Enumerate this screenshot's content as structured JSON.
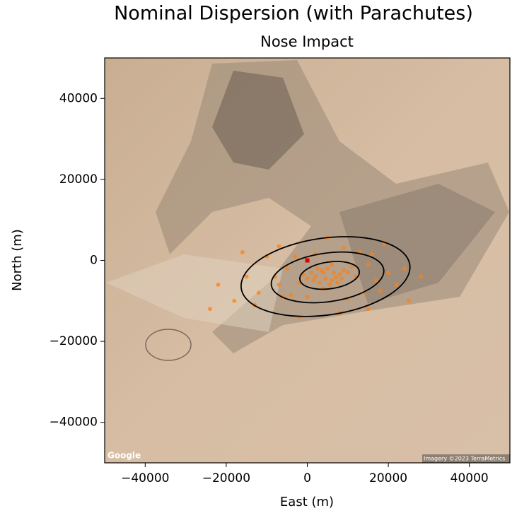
{
  "chart_data": {
    "type": "scatter",
    "title": "Nominal Dispersion (with Parachutes)",
    "subtitle": "Nose Impact",
    "x_label": "East (m)",
    "y_label": "North (m)",
    "xlim": [
      -50000,
      50000
    ],
    "ylim": [
      -50000,
      50000
    ],
    "xticks": [
      {
        "value": -40000,
        "label": "−40000"
      },
      {
        "value": -20000,
        "label": "−20000"
      },
      0,
      20000,
      40000
    ],
    "yticks": [
      {
        "value": -40000,
        "label": "−40000"
      },
      {
        "value": -20000,
        "label": "−20000"
      },
      0,
      20000,
      40000
    ],
    "color": "#ff7f0e",
    "x": [
      2000,
      4000,
      6000,
      8000,
      3000,
      5000,
      7000,
      1000,
      9000,
      4500,
      6500,
      3500,
      5500,
      7500,
      2500,
      8500,
      1500,
      10000,
      0,
      11000,
      -1000,
      12000,
      -2000,
      6000,
      4000,
      -5000,
      -7000,
      15000,
      17000,
      14000,
      -4000,
      13000,
      2000,
      9000,
      -3000,
      18000,
      -8000,
      20000,
      16000,
      -6000,
      10000,
      0,
      -12000,
      -15000,
      22000,
      24000,
      -10000,
      -13000,
      -18000,
      -22000,
      -24000,
      25000,
      19000,
      5000,
      -7000,
      8000,
      -2000,
      15000,
      28000,
      -16000
    ],
    "y": [
      -4000,
      -3000,
      -5000,
      -3500,
      -5500,
      -2000,
      -4200,
      -3000,
      -2500,
      -4500,
      -3000,
      -2500,
      -6000,
      -5500,
      -2000,
      -4500,
      -5000,
      -3000,
      -4500,
      -1500,
      -3500,
      -4000,
      -5500,
      -1000,
      -7000,
      -2000,
      -6000,
      -1000,
      -5000,
      -8000,
      -8500,
      2000,
      1500,
      3000,
      1000,
      -7500,
      -4000,
      -3000,
      1500,
      -9000,
      -9500,
      -9000,
      -8000,
      -4000,
      -6000,
      -2000,
      1000,
      -11000,
      -10000,
      -6000,
      -12000,
      -10000,
      4000,
      5500,
      3500,
      -13000,
      -14000,
      -12000,
      -4000,
      2000
    ],
    "ellipses": [
      {
        "cx": 5500,
        "cy": -3700,
        "rx": 7400,
        "ry": 3300,
        "angle": 8
      },
      {
        "cx": 5000,
        "cy": -4200,
        "rx": 14000,
        "ry": 6000,
        "angle": 8
      },
      {
        "cx": 4500,
        "cy": -4000,
        "rx": 21000,
        "ry": 9500,
        "angle": 8
      }
    ],
    "ellipse_color": "#000000",
    "launch_site": {
      "x": 0,
      "y": 0,
      "color": "#e00000"
    },
    "annotations": [
      "Google",
      "Imagery ©2023 TerraMetrics"
    ]
  }
}
